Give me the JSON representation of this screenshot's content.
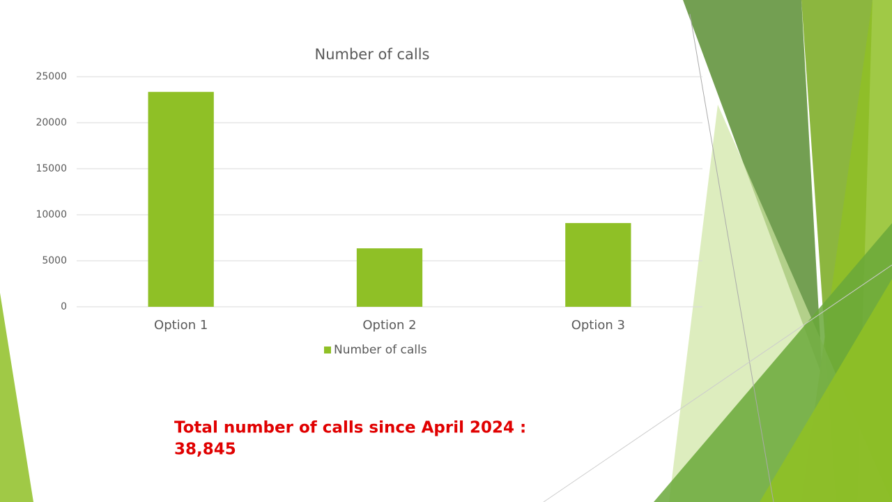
{
  "chart_data": {
    "type": "bar",
    "title": "Number of calls",
    "categories": [
      "Option 1",
      "Option 2",
      "Option 3"
    ],
    "series": [
      {
        "name": "Number of calls",
        "color": "#8fc026",
        "values": [
          23350,
          6350,
          9100
        ]
      }
    ],
    "ylim": [
      0,
      25000
    ],
    "yticks": [
      0,
      5000,
      10000,
      15000,
      20000,
      25000
    ],
    "grid": true,
    "legend": "bottom"
  },
  "annotation": [
    "Total number of calls since April 2024 :",
    "38,845"
  ]
}
